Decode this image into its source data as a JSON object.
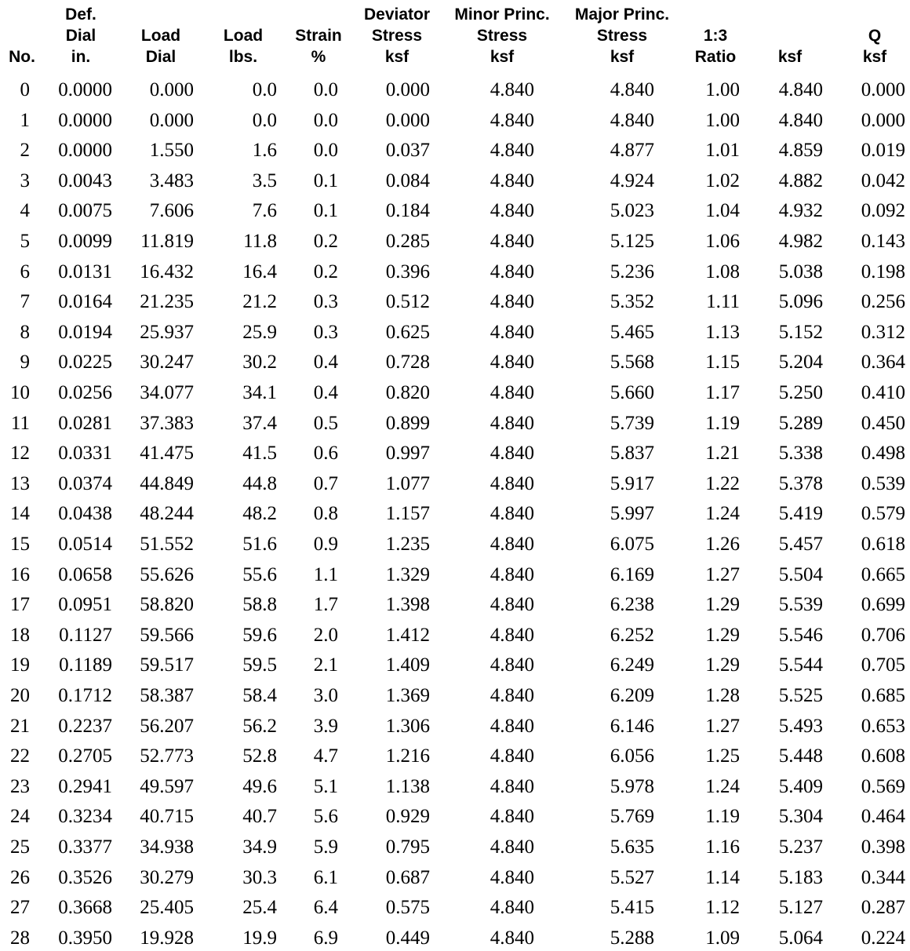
{
  "columns": [
    {
      "lines": [
        "No."
      ]
    },
    {
      "lines": [
        "Def.",
        "Dial",
        "in."
      ]
    },
    {
      "lines": [
        "Load",
        "Dial"
      ]
    },
    {
      "lines": [
        "Load",
        "lbs."
      ]
    },
    {
      "lines": [
        "Strain",
        "%"
      ]
    },
    {
      "lines": [
        "Deviator",
        "Stress",
        "ksf"
      ]
    },
    {
      "lines": [
        "Minor Princ.",
        "Stress",
        "ksf"
      ]
    },
    {
      "lines": [
        "Major Princ.",
        "Stress",
        "ksf"
      ]
    },
    {
      "lines": [
        "1:3",
        "Ratio"
      ]
    },
    {
      "lines": [
        "ksf"
      ]
    },
    {
      "lines": [
        "Q",
        "ksf"
      ]
    }
  ],
  "rows": [
    [
      "0",
      "0.0000",
      "0.000",
      "0.0",
      "0.0",
      "0.000",
      "4.840",
      "4.840",
      "1.00",
      "4.840",
      "0.000"
    ],
    [
      "1",
      "0.0000",
      "0.000",
      "0.0",
      "0.0",
      "0.000",
      "4.840",
      "4.840",
      "1.00",
      "4.840",
      "0.000"
    ],
    [
      "2",
      "0.0000",
      "1.550",
      "1.6",
      "0.0",
      "0.037",
      "4.840",
      "4.877",
      "1.01",
      "4.859",
      "0.019"
    ],
    [
      "3",
      "0.0043",
      "3.483",
      "3.5",
      "0.1",
      "0.084",
      "4.840",
      "4.924",
      "1.02",
      "4.882",
      "0.042"
    ],
    [
      "4",
      "0.0075",
      "7.606",
      "7.6",
      "0.1",
      "0.184",
      "4.840",
      "5.023",
      "1.04",
      "4.932",
      "0.092"
    ],
    [
      "5",
      "0.0099",
      "11.819",
      "11.8",
      "0.2",
      "0.285",
      "4.840",
      "5.125",
      "1.06",
      "4.982",
      "0.143"
    ],
    [
      "6",
      "0.0131",
      "16.432",
      "16.4",
      "0.2",
      "0.396",
      "4.840",
      "5.236",
      "1.08",
      "5.038",
      "0.198"
    ],
    [
      "7",
      "0.0164",
      "21.235",
      "21.2",
      "0.3",
      "0.512",
      "4.840",
      "5.352",
      "1.11",
      "5.096",
      "0.256"
    ],
    [
      "8",
      "0.0194",
      "25.937",
      "25.9",
      "0.3",
      "0.625",
      "4.840",
      "5.465",
      "1.13",
      "5.152",
      "0.312"
    ],
    [
      "9",
      "0.0225",
      "30.247",
      "30.2",
      "0.4",
      "0.728",
      "4.840",
      "5.568",
      "1.15",
      "5.204",
      "0.364"
    ],
    [
      "10",
      "0.0256",
      "34.077",
      "34.1",
      "0.4",
      "0.820",
      "4.840",
      "5.660",
      "1.17",
      "5.250",
      "0.410"
    ],
    [
      "11",
      "0.0281",
      "37.383",
      "37.4",
      "0.5",
      "0.899",
      "4.840",
      "5.739",
      "1.19",
      "5.289",
      "0.450"
    ],
    [
      "12",
      "0.0331",
      "41.475",
      "41.5",
      "0.6",
      "0.997",
      "4.840",
      "5.837",
      "1.21",
      "5.338",
      "0.498"
    ],
    [
      "13",
      "0.0374",
      "44.849",
      "44.8",
      "0.7",
      "1.077",
      "4.840",
      "5.917",
      "1.22",
      "5.378",
      "0.539"
    ],
    [
      "14",
      "0.0438",
      "48.244",
      "48.2",
      "0.8",
      "1.157",
      "4.840",
      "5.997",
      "1.24",
      "5.419",
      "0.579"
    ],
    [
      "15",
      "0.0514",
      "51.552",
      "51.6",
      "0.9",
      "1.235",
      "4.840",
      "6.075",
      "1.26",
      "5.457",
      "0.618"
    ],
    [
      "16",
      "0.0658",
      "55.626",
      "55.6",
      "1.1",
      "1.329",
      "4.840",
      "6.169",
      "1.27",
      "5.504",
      "0.665"
    ],
    [
      "17",
      "0.0951",
      "58.820",
      "58.8",
      "1.7",
      "1.398",
      "4.840",
      "6.238",
      "1.29",
      "5.539",
      "0.699"
    ],
    [
      "18",
      "0.1127",
      "59.566",
      "59.6",
      "2.0",
      "1.412",
      "4.840",
      "6.252",
      "1.29",
      "5.546",
      "0.706"
    ],
    [
      "19",
      "0.1189",
      "59.517",
      "59.5",
      "2.1",
      "1.409",
      "4.840",
      "6.249",
      "1.29",
      "5.544",
      "0.705"
    ],
    [
      "20",
      "0.1712",
      "58.387",
      "58.4",
      "3.0",
      "1.369",
      "4.840",
      "6.209",
      "1.28",
      "5.525",
      "0.685"
    ],
    [
      "21",
      "0.2237",
      "56.207",
      "56.2",
      "3.9",
      "1.306",
      "4.840",
      "6.146",
      "1.27",
      "5.493",
      "0.653"
    ],
    [
      "22",
      "0.2705",
      "52.773",
      "52.8",
      "4.7",
      "1.216",
      "4.840",
      "6.056",
      "1.25",
      "5.448",
      "0.608"
    ],
    [
      "23",
      "0.2941",
      "49.597",
      "49.6",
      "5.1",
      "1.138",
      "4.840",
      "5.978",
      "1.24",
      "5.409",
      "0.569"
    ],
    [
      "24",
      "0.3234",
      "40.715",
      "40.7",
      "5.6",
      "0.929",
      "4.840",
      "5.769",
      "1.19",
      "5.304",
      "0.464"
    ],
    [
      "25",
      "0.3377",
      "34.938",
      "34.9",
      "5.9",
      "0.795",
      "4.840",
      "5.635",
      "1.16",
      "5.237",
      "0.398"
    ],
    [
      "26",
      "0.3526",
      "30.279",
      "30.3",
      "6.1",
      "0.687",
      "4.840",
      "5.527",
      "1.14",
      "5.183",
      "0.344"
    ],
    [
      "27",
      "0.3668",
      "25.405",
      "25.4",
      "6.4",
      "0.575",
      "4.840",
      "5.415",
      "1.12",
      "5.127",
      "0.287"
    ],
    [
      "28",
      "0.3950",
      "19.928",
      "19.9",
      "6.9",
      "0.449",
      "4.840",
      "5.288",
      "1.09",
      "5.064",
      "0.224"
    ]
  ]
}
